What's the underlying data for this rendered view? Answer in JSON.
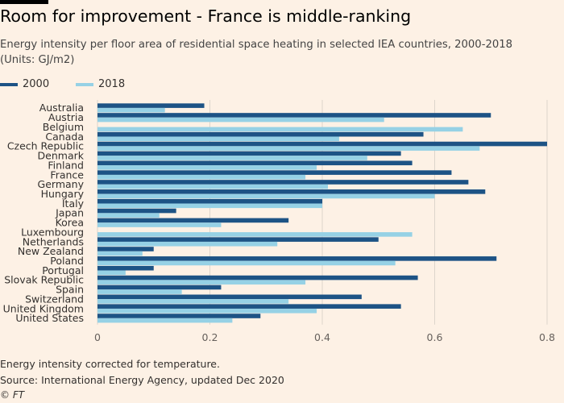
{
  "header": {
    "title": "Room for improvement - France is middle-ranking",
    "subtitle": "Energy intensity per floor area of residential space heating in selected IEA countries, 2000-2018 (Units: GJ/m2)"
  },
  "footer": {
    "note": "Energy intensity corrected for temperature.",
    "source": "Source: International Energy Agency, updated Dec 2020",
    "credit": "© FT"
  },
  "colors": {
    "background": "#fdf1e5",
    "series_2000": "#1d5385",
    "series_2018": "#96d1e5",
    "grid": "#ddd5cc"
  },
  "chart_data": {
    "type": "bar",
    "orientation": "horizontal",
    "categories": [
      "Australia",
      "Austria",
      "Belgium",
      "Canada",
      "Czech Republic",
      "Denmark",
      "Finland",
      "France",
      "Germany",
      "Hungary",
      "Italy",
      "Japan",
      "Korea",
      "Luxembourg",
      "Netherlands",
      "New Zealand",
      "Poland",
      "Portugal",
      "Slovak Republic",
      "Spain",
      "Switzerland",
      "United Kingdom",
      "United States"
    ],
    "series": [
      {
        "name": "2000",
        "color": "#1d5385",
        "values": [
          0.19,
          0.7,
          null,
          0.58,
          0.8,
          0.54,
          0.56,
          0.63,
          0.66,
          0.69,
          0.4,
          0.14,
          0.34,
          null,
          0.5,
          0.1,
          0.71,
          0.1,
          0.57,
          0.22,
          0.47,
          0.54,
          0.29
        ]
      },
      {
        "name": "2018",
        "color": "#96d1e5",
        "values": [
          0.12,
          0.51,
          0.65,
          0.43,
          0.68,
          0.48,
          0.39,
          0.37,
          0.41,
          0.6,
          0.4,
          0.11,
          0.22,
          0.56,
          0.32,
          0.08,
          0.53,
          0.05,
          0.37,
          0.15,
          0.34,
          0.39,
          0.24
        ]
      }
    ],
    "xlim": [
      0,
      0.8
    ],
    "xticks": [
      "0",
      "0.2",
      "0.4",
      "0.6",
      "0.8"
    ],
    "grid": true,
    "legend_position": "top-left"
  }
}
